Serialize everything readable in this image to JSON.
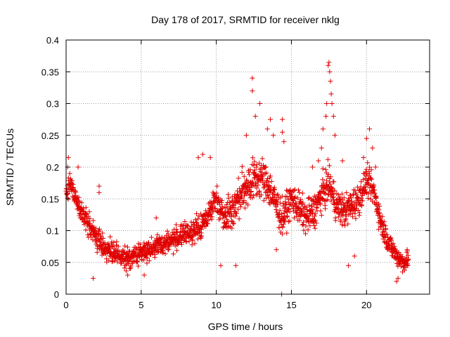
{
  "chart_data": {
    "type": "scatter",
    "title": "Day 178 of 2017, SRMTID for receiver nklg",
    "xlabel": "GPS time / hours",
    "ylabel": "SRMTID / TECUs",
    "xlim": [
      0,
      24.2
    ],
    "ylim": [
      0,
      0.4
    ],
    "xticks": [
      0,
      5,
      10,
      15,
      20
    ],
    "xtick_labels": [
      "0",
      "5",
      "10",
      "15",
      "20"
    ],
    "yticks": [
      0,
      0.05,
      0.1,
      0.15,
      0.2,
      0.25,
      0.3,
      0.35,
      0.4
    ],
    "ytick_labels": [
      "0",
      "0.05",
      "0.1",
      "0.15",
      "0.2",
      "0.25",
      "0.3",
      "0.35",
      "0.4"
    ],
    "grid": true,
    "marker": "+",
    "marker_color": "#e00000",
    "series": [
      {
        "name": "SRMTID",
        "trend": [
          [
            0.0,
            0.16
          ],
          [
            0.3,
            0.175
          ],
          [
            0.6,
            0.15
          ],
          [
            1.0,
            0.13
          ],
          [
            1.5,
            0.11
          ],
          [
            2.0,
            0.09
          ],
          [
            2.5,
            0.075
          ],
          [
            3.0,
            0.065
          ],
          [
            3.5,
            0.06
          ],
          [
            4.0,
            0.055
          ],
          [
            4.5,
            0.06
          ],
          [
            5.0,
            0.065
          ],
          [
            5.5,
            0.07
          ],
          [
            6.0,
            0.075
          ],
          [
            6.5,
            0.08
          ],
          [
            7.0,
            0.085
          ],
          [
            7.5,
            0.09
          ],
          [
            8.0,
            0.095
          ],
          [
            8.5,
            0.1
          ],
          [
            9.0,
            0.105
          ],
          [
            9.5,
            0.13
          ],
          [
            10.0,
            0.15
          ],
          [
            10.5,
            0.125
          ],
          [
            11.0,
            0.13
          ],
          [
            11.5,
            0.15
          ],
          [
            12.0,
            0.17
          ],
          [
            12.5,
            0.18
          ],
          [
            13.0,
            0.185
          ],
          [
            13.5,
            0.17
          ],
          [
            14.0,
            0.14
          ],
          [
            14.4,
            0.12
          ],
          [
            14.8,
            0.14
          ],
          [
            15.0,
            0.15
          ],
          [
            15.5,
            0.135
          ],
          [
            16.0,
            0.12
          ],
          [
            16.5,
            0.13
          ],
          [
            17.0,
            0.155
          ],
          [
            17.5,
            0.175
          ],
          [
            18.0,
            0.14
          ],
          [
            18.5,
            0.13
          ],
          [
            19.0,
            0.14
          ],
          [
            19.5,
            0.15
          ],
          [
            20.0,
            0.18
          ],
          [
            20.5,
            0.16
          ],
          [
            21.0,
            0.11
          ],
          [
            21.5,
            0.08
          ],
          [
            22.0,
            0.06
          ],
          [
            22.5,
            0.05
          ],
          [
            22.8,
            0.055
          ]
        ],
        "spread": [
          [
            0.0,
            0.025
          ],
          [
            2.0,
            0.03
          ],
          [
            5.0,
            0.025
          ],
          [
            9.0,
            0.03
          ],
          [
            10.0,
            0.035
          ],
          [
            12.0,
            0.055
          ],
          [
            13.5,
            0.05
          ],
          [
            15.0,
            0.04
          ],
          [
            17.0,
            0.045
          ],
          [
            19.0,
            0.04
          ],
          [
            20.5,
            0.035
          ],
          [
            22.0,
            0.025
          ],
          [
            22.8,
            0.02
          ]
        ],
        "notable_points": [
          [
            0.15,
            0.215
          ],
          [
            0.1,
            0.2
          ],
          [
            0.25,
            0.19
          ],
          [
            0.8,
            0.2
          ],
          [
            1.8,
            0.025
          ],
          [
            2.2,
            0.16
          ],
          [
            2.2,
            0.17
          ],
          [
            4.1,
            0.03
          ],
          [
            5.2,
            0.03
          ],
          [
            6.0,
            0.12
          ],
          [
            8.8,
            0.215
          ],
          [
            9.1,
            0.22
          ],
          [
            9.6,
            0.215
          ],
          [
            10.3,
            0.045
          ],
          [
            11.3,
            0.045
          ],
          [
            12.0,
            0.25
          ],
          [
            12.4,
            0.34
          ],
          [
            12.4,
            0.32
          ],
          [
            12.6,
            0.28
          ],
          [
            12.9,
            0.3
          ],
          [
            13.4,
            0.26
          ],
          [
            13.6,
            0.275
          ],
          [
            13.8,
            0.25
          ],
          [
            14.0,
            0.07
          ],
          [
            14.35,
            0.0
          ],
          [
            14.4,
            0.275
          ],
          [
            14.4,
            0.255
          ],
          [
            14.5,
            0.24
          ],
          [
            16.4,
            0.2
          ],
          [
            16.8,
            0.21
          ],
          [
            17.0,
            0.23
          ],
          [
            17.1,
            0.26
          ],
          [
            17.3,
            0.28
          ],
          [
            17.35,
            0.3
          ],
          [
            17.45,
            0.36
          ],
          [
            17.5,
            0.365
          ],
          [
            17.55,
            0.35
          ],
          [
            17.6,
            0.335
          ],
          [
            17.65,
            0.315
          ],
          [
            17.7,
            0.3
          ],
          [
            17.8,
            0.28
          ],
          [
            17.9,
            0.25
          ],
          [
            18.4,
            0.21
          ],
          [
            18.8,
            0.045
          ],
          [
            19.2,
            0.06
          ],
          [
            19.8,
            0.215
          ],
          [
            20.0,
            0.245
          ],
          [
            20.2,
            0.26
          ],
          [
            20.4,
            0.23
          ],
          [
            20.6,
            0.2
          ],
          [
            22.0,
            0.02
          ],
          [
            22.1,
            0.025
          ],
          [
            22.4,
            0.035
          ],
          [
            22.7,
            0.07
          ]
        ]
      }
    ]
  }
}
